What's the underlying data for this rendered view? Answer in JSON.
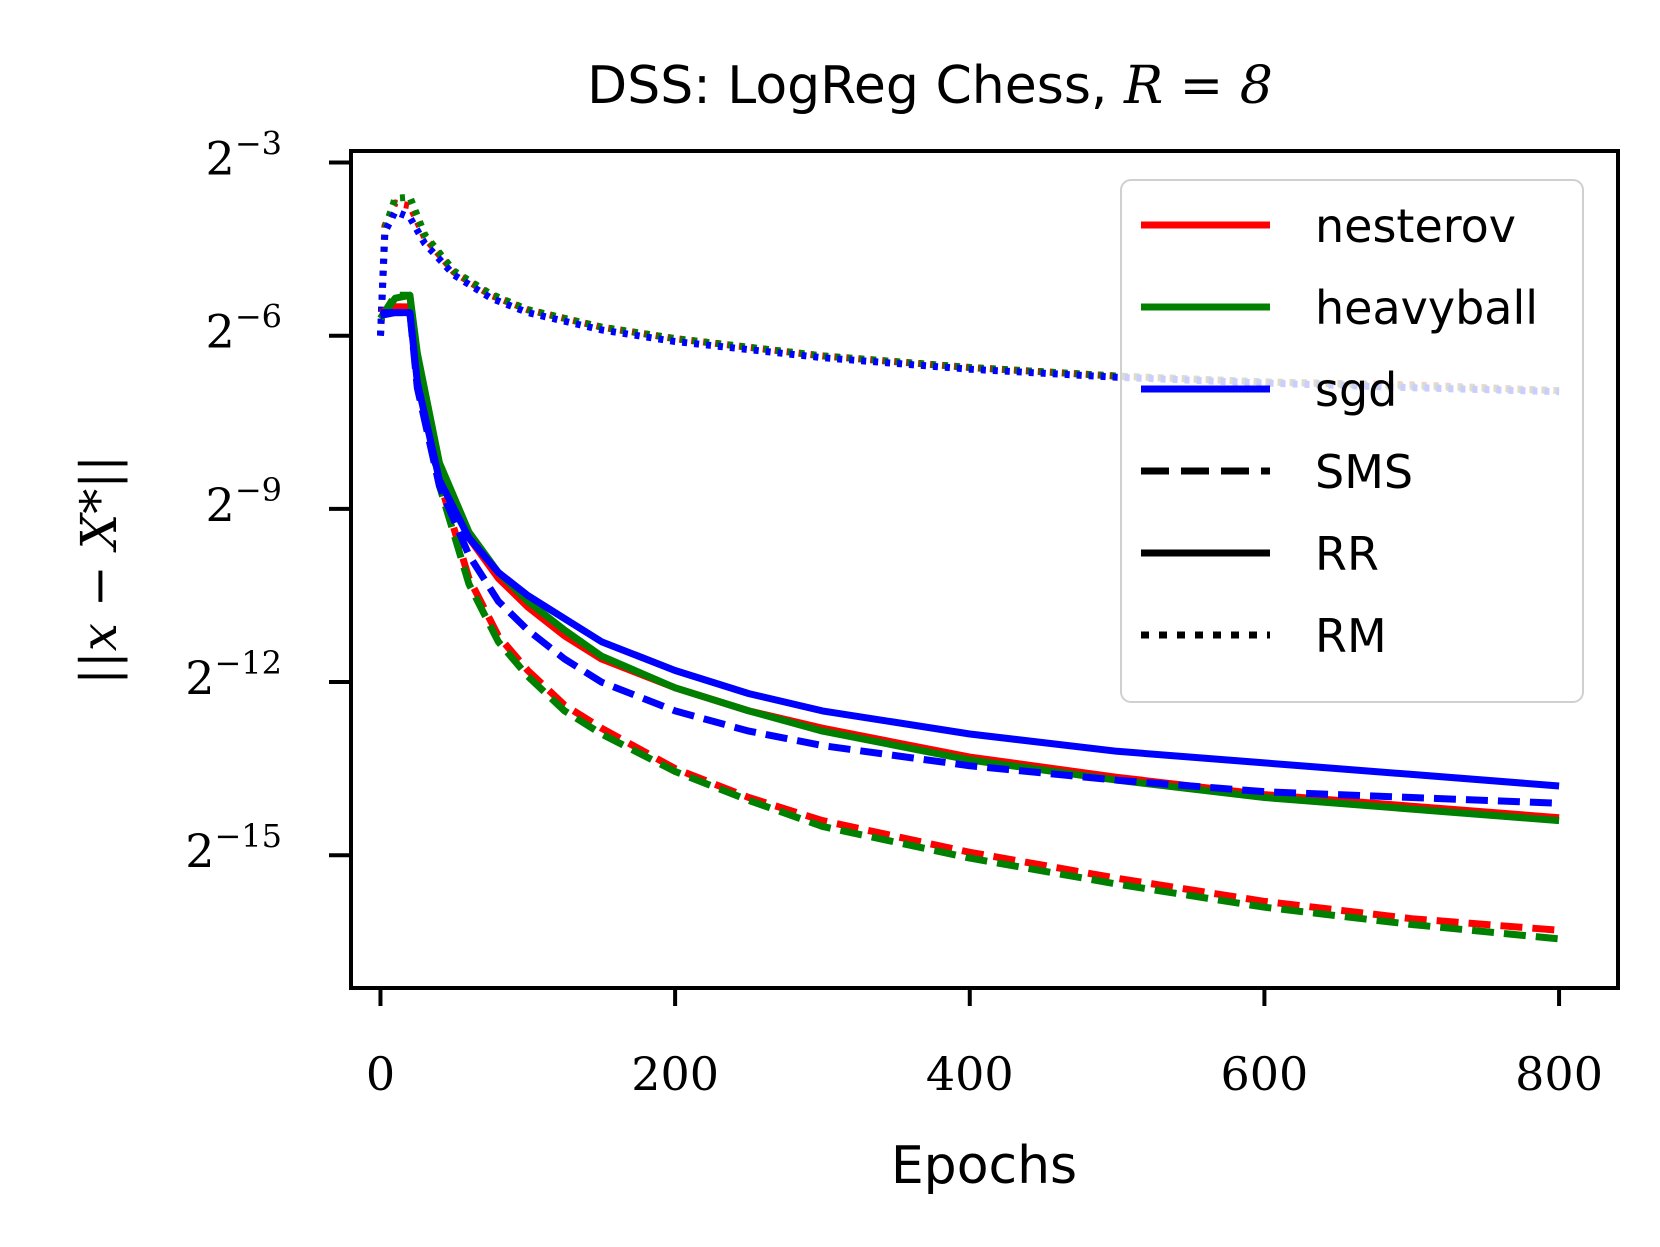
{
  "chart_data": {
    "type": "line",
    "title_prefix": "DSS: LogReg Chess, ",
    "title_math": "R = 8",
    "xlabel": "Epochs",
    "ylabel": "||x − X*||",
    "xlim": [
      -20,
      840
    ],
    "ylim_log2": [
      -17.3,
      -2.8
    ],
    "x_ticks": [
      0,
      200,
      400,
      600,
      800
    ],
    "x_tick_labels": [
      "0",
      "200",
      "400",
      "600",
      "800"
    ],
    "y_ticks_log2": [
      -3,
      -6,
      -9,
      -12,
      -15
    ],
    "y_tick_base": "2",
    "y_tick_exponents": [
      "−3",
      "−6",
      "−9",
      "−12",
      "−15"
    ],
    "legend": {
      "position": "top-right",
      "entries": [
        {
          "label": "nesterov",
          "style": "solid",
          "color": "#ff0000"
        },
        {
          "label": "heavyball",
          "style": "solid",
          "color": "#008000"
        },
        {
          "label": "sgd",
          "style": "solid",
          "color": "#0000ff"
        },
        {
          "label": "SMS",
          "style": "dashed",
          "color": "#000000"
        },
        {
          "label": "RR",
          "style": "solid",
          "color": "#000000"
        },
        {
          "label": "RM",
          "style": "dotted",
          "color": "#000000"
        }
      ]
    },
    "series": [
      {
        "name": "nesterov RM",
        "color": "#ff0000",
        "style": "dotted",
        "x": [
          0,
          3,
          10,
          20,
          30,
          50,
          75,
          100,
          150,
          200,
          300,
          400,
          500,
          600,
          700,
          800
        ],
        "log2_y": [
          -6.0,
          -4.1,
          -3.7,
          -3.75,
          -4.3,
          -4.9,
          -5.3,
          -5.55,
          -5.85,
          -6.05,
          -6.35,
          -6.55,
          -6.7,
          -6.8,
          -6.85,
          -6.95
        ]
      },
      {
        "name": "heavyball RM",
        "color": "#008000",
        "style": "dotted",
        "x": [
          0,
          3,
          10,
          20,
          30,
          50,
          75,
          100,
          150,
          200,
          300,
          400,
          500,
          600,
          700,
          800
        ],
        "log2_y": [
          -6.0,
          -4.15,
          -3.62,
          -3.6,
          -4.25,
          -4.88,
          -5.28,
          -5.55,
          -5.85,
          -6.05,
          -6.35,
          -6.55,
          -6.7,
          -6.8,
          -6.88,
          -6.95
        ]
      },
      {
        "name": "sgd RM",
        "color": "#0000ff",
        "style": "dotted",
        "x": [
          0,
          3,
          10,
          20,
          30,
          50,
          75,
          100,
          150,
          200,
          300,
          400,
          500,
          600,
          700,
          800
        ],
        "log2_y": [
          -6.0,
          -4.2,
          -3.85,
          -3.95,
          -4.4,
          -4.95,
          -5.35,
          -5.6,
          -5.9,
          -6.1,
          -6.38,
          -6.58,
          -6.72,
          -6.82,
          -6.9,
          -6.97
        ]
      },
      {
        "name": "nesterov SMS",
        "color": "#ff0000",
        "style": "dashed",
        "x": [
          0,
          10,
          20,
          25,
          40,
          60,
          80,
          100,
          125,
          150,
          200,
          250,
          300,
          400,
          500,
          600,
          700,
          800
        ],
        "log2_y": [
          -5.6,
          -5.5,
          -5.5,
          -6.5,
          -8.5,
          -10.2,
          -11.2,
          -11.8,
          -12.4,
          -12.8,
          -13.5,
          -14.0,
          -14.4,
          -14.95,
          -15.4,
          -15.8,
          -16.1,
          -16.3
        ]
      },
      {
        "name": "heavyball SMS",
        "color": "#008000",
        "style": "dashed",
        "x": [
          0,
          10,
          20,
          25,
          40,
          60,
          80,
          100,
          125,
          150,
          200,
          250,
          300,
          400,
          500,
          600,
          700,
          800
        ],
        "log2_y": [
          -5.7,
          -5.3,
          -5.3,
          -6.5,
          -8.6,
          -10.3,
          -11.3,
          -11.9,
          -12.5,
          -12.9,
          -13.55,
          -14.05,
          -14.5,
          -15.05,
          -15.5,
          -15.9,
          -16.2,
          -16.45
        ]
      },
      {
        "name": "nesterov RR",
        "color": "#ff0000",
        "style": "solid",
        "x": [
          0,
          10,
          20,
          25,
          40,
          60,
          80,
          100,
          125,
          150,
          200,
          250,
          300,
          400,
          500,
          600,
          700,
          800
        ],
        "log2_y": [
          -5.6,
          -5.5,
          -5.5,
          -6.4,
          -8.3,
          -9.5,
          -10.2,
          -10.7,
          -11.2,
          -11.6,
          -12.1,
          -12.5,
          -12.8,
          -13.3,
          -13.65,
          -13.95,
          -14.15,
          -14.35
        ]
      },
      {
        "name": "heavyball RR",
        "color": "#008000",
        "style": "solid",
        "x": [
          0,
          10,
          20,
          25,
          40,
          60,
          80,
          100,
          125,
          150,
          200,
          250,
          300,
          400,
          500,
          600,
          700,
          800
        ],
        "log2_y": [
          -5.7,
          -5.35,
          -5.3,
          -6.3,
          -8.2,
          -9.4,
          -10.1,
          -10.6,
          -11.1,
          -11.55,
          -12.1,
          -12.5,
          -12.85,
          -13.35,
          -13.7,
          -14.0,
          -14.2,
          -14.4
        ]
      },
      {
        "name": "sgd RR",
        "color": "#0000ff",
        "style": "solid",
        "x": [
          0,
          10,
          20,
          25,
          40,
          60,
          80,
          100,
          125,
          150,
          200,
          250,
          300,
          400,
          500,
          600,
          700,
          800
        ],
        "log2_y": [
          -5.6,
          -5.6,
          -5.6,
          -6.8,
          -8.5,
          -9.5,
          -10.1,
          -10.5,
          -10.9,
          -11.3,
          -11.8,
          -12.2,
          -12.5,
          -12.9,
          -13.2,
          -13.4,
          -13.6,
          -13.8
        ]
      },
      {
        "name": "sgd SMS",
        "color": "#0000ff",
        "style": "dashed",
        "x": [
          0,
          10,
          20,
          25,
          40,
          60,
          80,
          100,
          125,
          150,
          200,
          250,
          300,
          400,
          500,
          600,
          700,
          800
        ],
        "log2_y": [
          -5.65,
          -5.6,
          -5.6,
          -6.9,
          -8.6,
          -9.8,
          -10.6,
          -11.1,
          -11.6,
          -12.0,
          -12.5,
          -12.85,
          -13.1,
          -13.45,
          -13.7,
          -13.9,
          -14.0,
          -14.1
        ]
      }
    ]
  }
}
